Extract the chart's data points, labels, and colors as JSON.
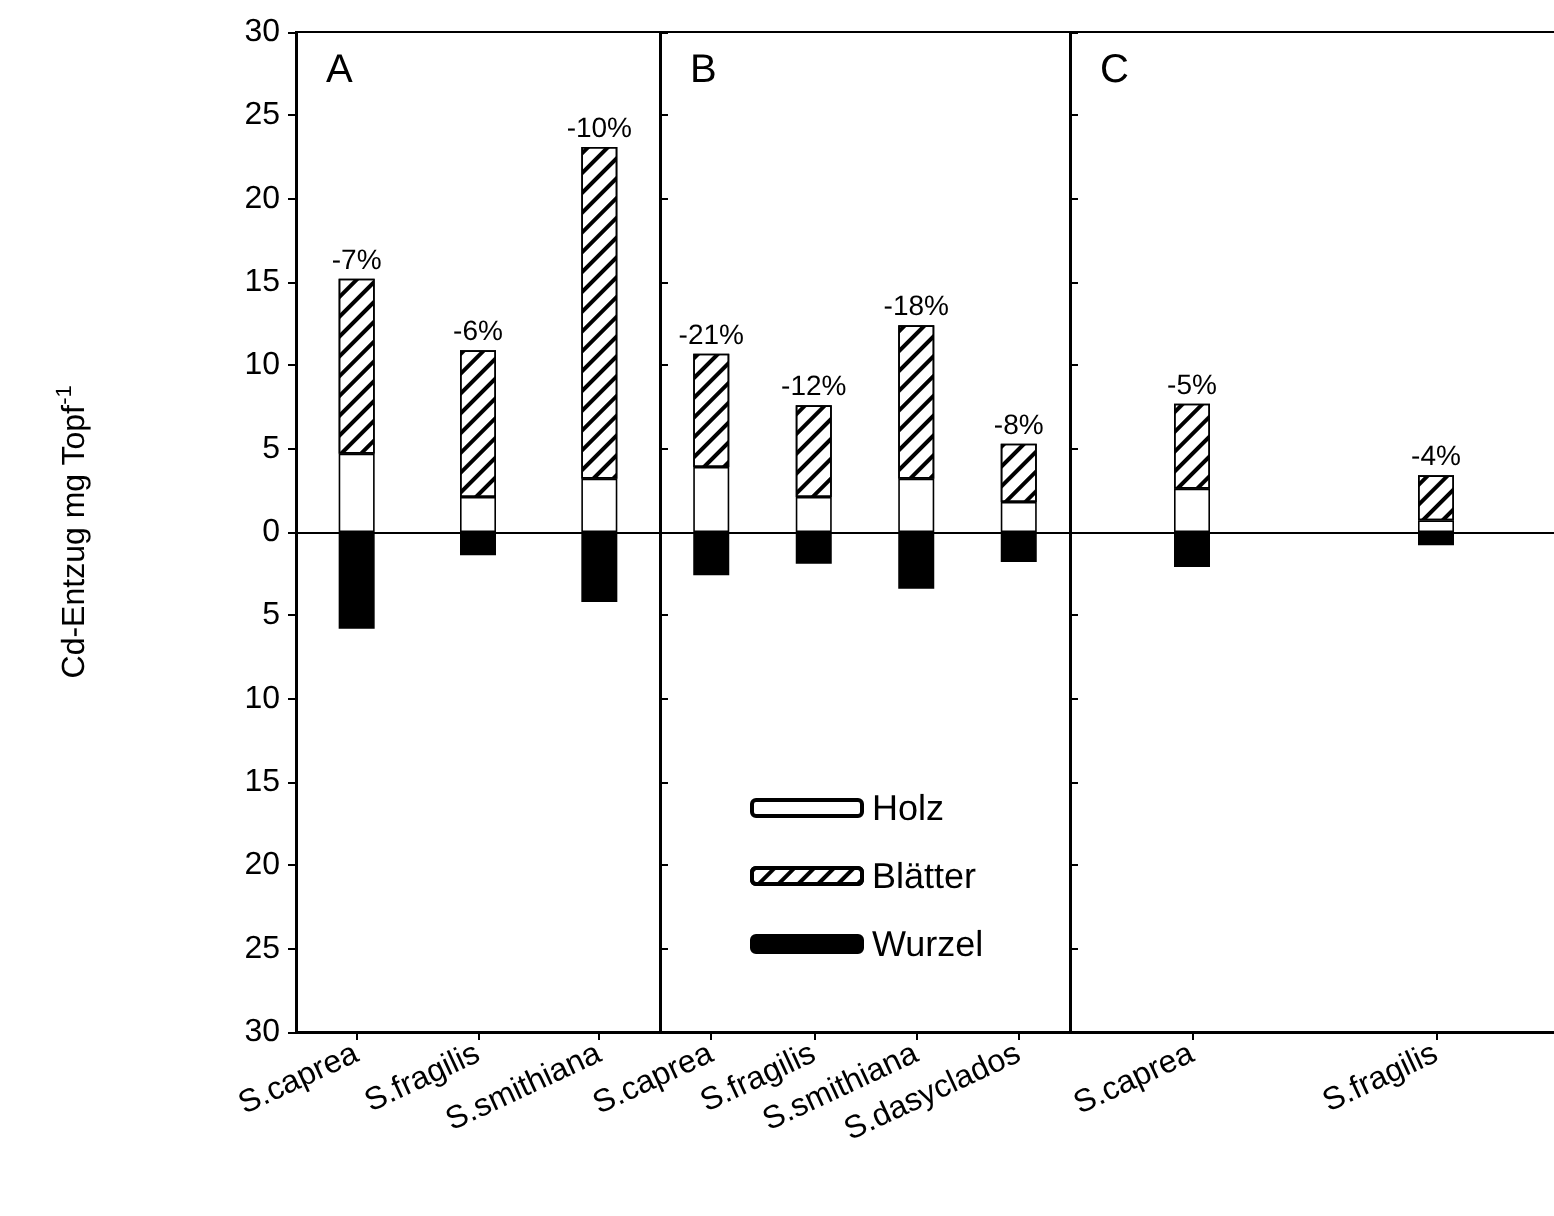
{
  "chart_data": [
    {
      "type": "bar",
      "title": "A",
      "ylabel": "Cd-Entzug mg Topf$^{-1}$",
      "categories": [
        "S.caprea",
        "S.fragilis",
        "S.smithiana"
      ],
      "stacked": true,
      "series": [
        {
          "color": "#ffffff",
          "values": [
            4.7,
            2.1,
            3.2
          ]
        },
        {
          "color": "#ffffff",
          "values": [
            10.5,
            8.8,
            19.9
          ]
        },
        {
          "color": "#000000",
          "values": [
            -5.8,
            -1.4,
            -4.2
          ]
        }
      ],
      "annotations": [
        {
          "text": "-7%",
          "x": "S.caprea",
          "y": 15.2
        },
        {
          "text": "-6%",
          "x": "S.fragilis",
          "y": 10.9
        },
        {
          "text": "-10%",
          "x": "S.smithiana",
          "y": 23.1
        }
      ],
      "ylim": [
        -30,
        30
      ],
      "yticks": [
        {
          "value": -30,
          "label": "30"
        },
        {
          "value": -25,
          "label": "25"
        },
        {
          "value": -20,
          "label": "20"
        },
        {
          "value": -15,
          "label": "15"
        },
        {
          "value": -10,
          "label": "10"
        },
        {
          "value": -5,
          "label": "5"
        },
        0,
        5,
        10,
        15,
        20,
        25,
        30
      ],
      "ref_lines": [
        {
          "axis": "y",
          "value": 0,
          "color": "#000000"
        }
      ],
      "grid": false,
      "legend": false
    },
    {
      "type": "bar",
      "title": "B",
      "categories": [
        "S.caprea",
        "S.fragilis",
        "S.smithiana",
        "S.dasyclados"
      ],
      "stacked": true,
      "series": [
        {
          "name": "Holz",
          "color": "#ffffff",
          "values": [
            3.9,
            2.1,
            3.2,
            1.8
          ]
        },
        {
          "name": "Blätter",
          "color": "#ffffff",
          "values": [
            6.8,
            5.5,
            9.2,
            3.5
          ]
        },
        {
          "name": "Wurzel",
          "color": "#000000",
          "values": [
            -2.6,
            -1.9,
            -3.4,
            -1.8
          ]
        }
      ],
      "annotations": [
        {
          "text": "-21%",
          "x": "S.caprea",
          "y": 10.7
        },
        {
          "text": "-12%",
          "x": "S.fragilis",
          "y": 7.6
        },
        {
          "text": "-18%",
          "x": "S.smithiana",
          "y": 12.4
        },
        {
          "text": "-8%",
          "x": "S.dasyclados",
          "y": 5.3
        }
      ],
      "ylim": [
        -30,
        30
      ],
      "yticks": [
        {
          "value": -30,
          "label": null
        },
        {
          "value": -25,
          "label": null
        },
        {
          "value": -20,
          "label": null
        },
        {
          "value": -15,
          "label": null
        },
        {
          "value": -10,
          "label": null
        },
        {
          "value": -5,
          "label": null
        },
        {
          "value": 0,
          "label": null
        },
        {
          "value": 5,
          "label": null
        },
        {
          "value": 10,
          "label": null
        },
        {
          "value": 15,
          "label": null
        },
        {
          "value": 20,
          "label": null
        },
        {
          "value": 25,
          "label": null
        },
        {
          "value": 30,
          "label": null
        }
      ],
      "tick_labels": "x",
      "ref_lines": [
        {
          "axis": "y",
          "value": 0,
          "color": "#000000"
        }
      ],
      "grid": false,
      "legend": "bottom left"
    },
    {
      "type": "bar",
      "title": "C",
      "categories": [
        "S.caprea",
        "S.fragilis"
      ],
      "stacked": true,
      "series": [
        {
          "color": "#ffffff",
          "values": [
            2.6,
            0.7
          ]
        },
        {
          "color": "#ffffff",
          "values": [
            5.1,
            2.7
          ]
        },
        {
          "color": "#000000",
          "values": [
            -2.1,
            -0.8
          ]
        }
      ],
      "annotations": [
        {
          "text": "-5%",
          "x": "S.caprea",
          "y": 7.7
        },
        {
          "text": "-4%",
          "x": "S.fragilis",
          "y": 3.4
        }
      ],
      "ylim": [
        -30,
        30
      ],
      "yticks": [
        {
          "value": -30,
          "label": null
        },
        {
          "value": -25,
          "label": null
        },
        {
          "value": -20,
          "label": null
        },
        {
          "value": -15,
          "label": null
        },
        {
          "value": -10,
          "label": null
        },
        {
          "value": -5,
          "label": null
        },
        {
          "value": 0,
          "label": null
        },
        {
          "value": 5,
          "label": null
        },
        {
          "value": 10,
          "label": null
        },
        {
          "value": 15,
          "label": null
        },
        {
          "value": 20,
          "label": null
        },
        {
          "value": 25,
          "label": null
        },
        {
          "value": 30,
          "label": null
        }
      ],
      "tick_labels": "x",
      "ref_lines": [
        {
          "axis": "y",
          "value": 0,
          "color": "#000000"
        }
      ],
      "grid": false,
      "legend": false
    }
  ]
}
